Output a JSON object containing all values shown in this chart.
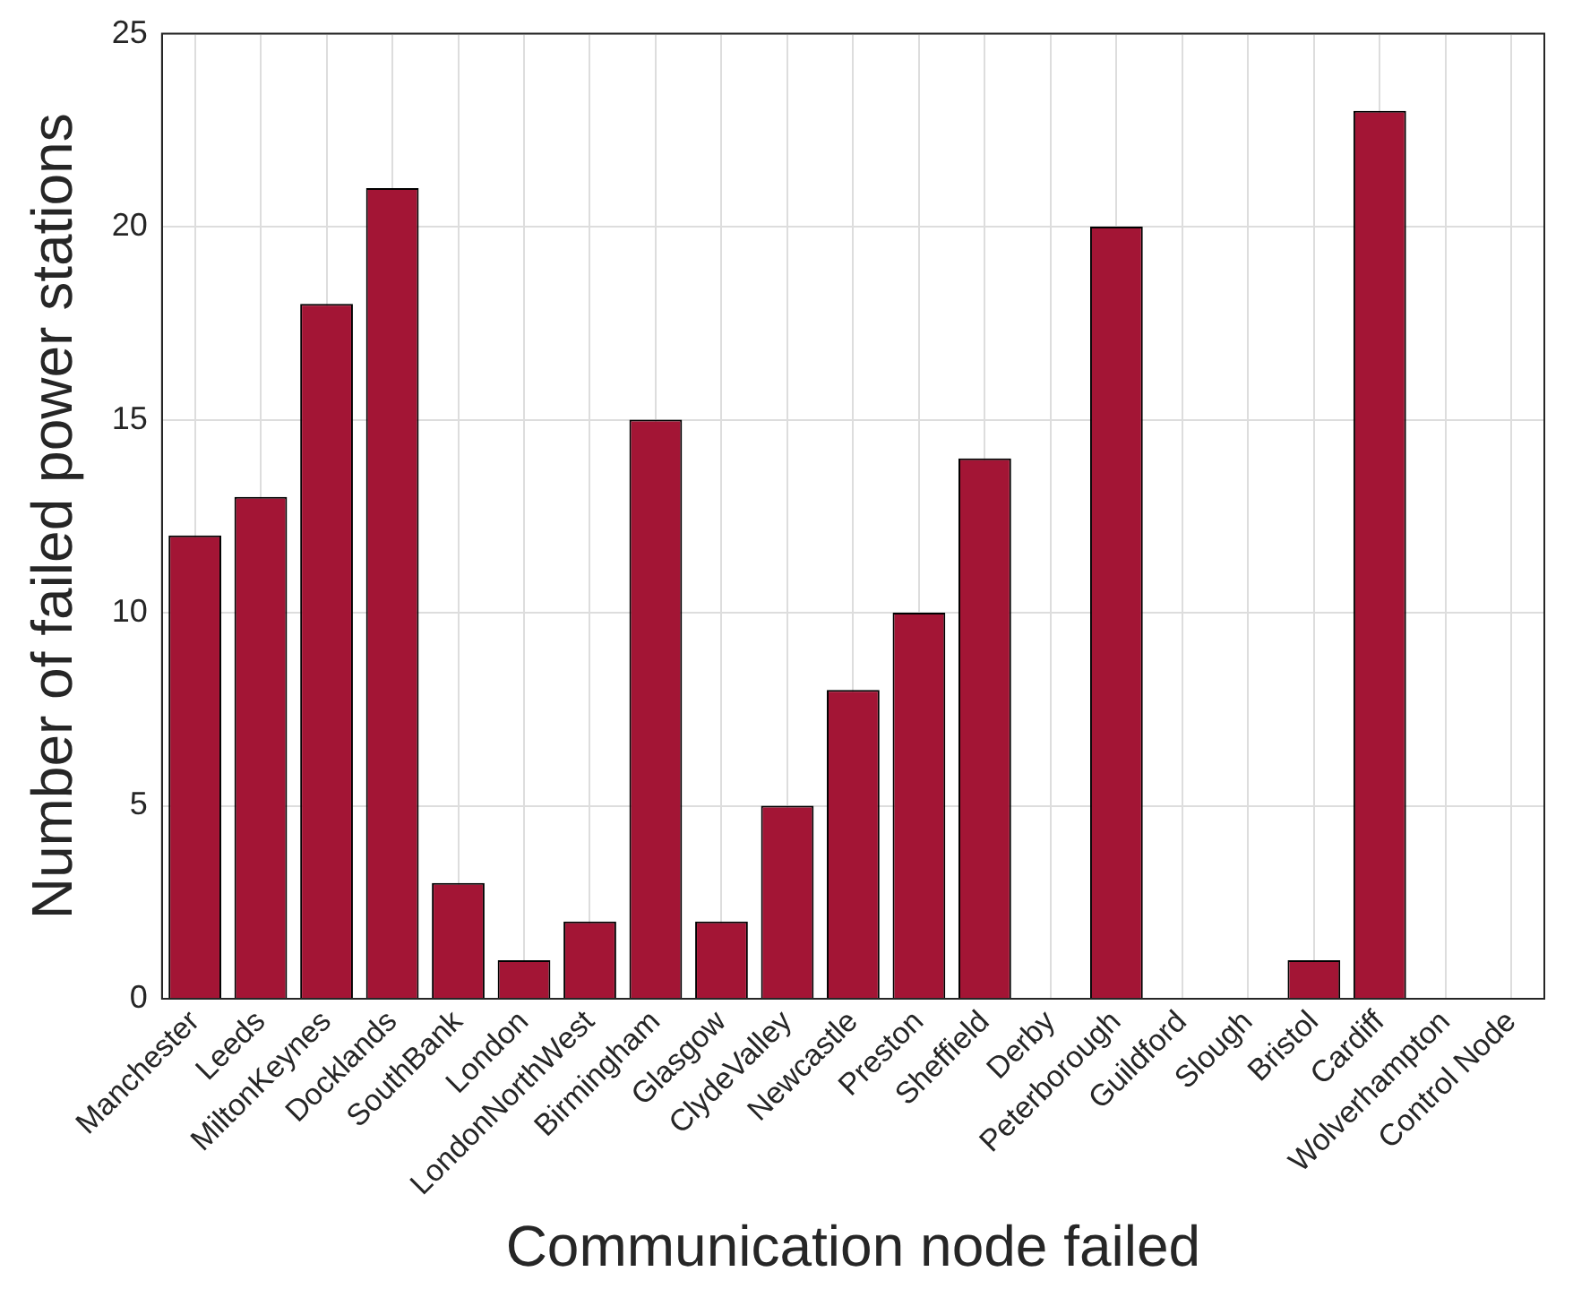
{
  "chart_data": {
    "type": "bar",
    "xlabel": "Communication node failed",
    "ylabel": "Number of failed power stations",
    "categories": [
      "Manchester",
      "Leeds",
      "MiltonKeynes",
      "Docklands",
      "SouthBank",
      "London",
      "LondonNorthWest",
      "Birmingham",
      "Glasgow",
      "ClydeValley",
      "Newcastle",
      "Preston",
      "Sheffield",
      "Derby",
      "Peterborough",
      "Guildford",
      "Slough",
      "Bristol",
      "Cardiff",
      "Wolverhampton",
      "Control Node"
    ],
    "values": [
      12,
      13,
      18,
      21,
      3,
      1,
      2,
      15,
      2,
      5,
      8,
      10,
      14,
      0,
      20,
      0,
      0,
      1,
      23,
      0,
      0
    ],
    "color": "#a31535",
    "ylim": [
      0,
      25
    ],
    "yticks": [
      0,
      5,
      10,
      15,
      20,
      25
    ],
    "grid": true
  }
}
